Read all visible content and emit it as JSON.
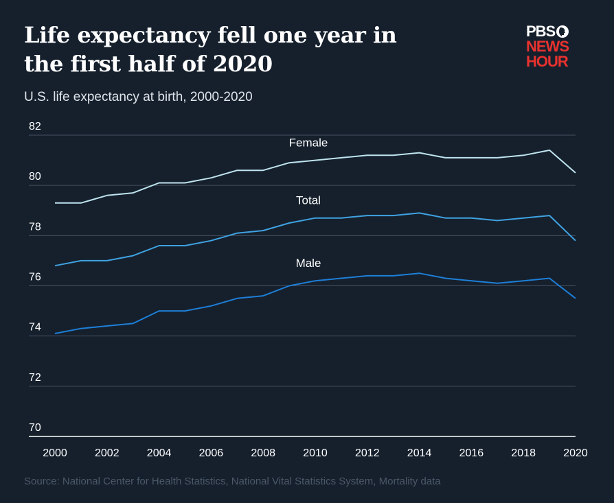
{
  "header": {
    "title": "Life expectancy fell one year in\nthe first half of 2020",
    "subtitle": "U.S. life expectancy at birth, 2000-2020"
  },
  "logo": {
    "line1": "PBS",
    "line2": "NEWS",
    "line3": "HOUR",
    "icon": "pbs-head-icon",
    "colors": {
      "pbs": "#ffffff",
      "news_hour": "#e8322f"
    }
  },
  "footer": {
    "source": "Source: National Center for Health Statistics, National Vital Statistics System, Mortality data"
  },
  "colors": {
    "background": "#16202d",
    "gridline": "#46505e",
    "female": "#bfe4ef",
    "total": "#3fa3e2",
    "male": "#1d7fd8"
  },
  "chart_data": {
    "type": "line",
    "title": "Life expectancy fell one year in the first half of 2020",
    "subtitle": "U.S. life expectancy at birth, 2000-2020",
    "x": [
      2000,
      2001,
      2002,
      2003,
      2004,
      2005,
      2006,
      2007,
      2008,
      2009,
      2010,
      2011,
      2012,
      2013,
      2014,
      2015,
      2016,
      2017,
      2018,
      2019,
      2020
    ],
    "x_ticks": [
      "2000",
      "2002",
      "2004",
      "2006",
      "2008",
      "2010",
      "2012",
      "2014",
      "2016",
      "2018",
      "2020"
    ],
    "y_ticks": [
      "70",
      "72",
      "74",
      "76",
      "78",
      "80",
      "82"
    ],
    "xlim": [
      2000,
      2020
    ],
    "ylim": [
      70,
      82
    ],
    "grid": true,
    "series": [
      {
        "name": "Female",
        "color": "#bfe4ef",
        "values": [
          79.3,
          79.3,
          79.6,
          79.7,
          80.1,
          80.1,
          80.3,
          80.6,
          80.6,
          80.9,
          81.0,
          81.1,
          81.2,
          81.2,
          81.3,
          81.1,
          81.1,
          81.1,
          81.2,
          81.4,
          80.5
        ]
      },
      {
        "name": "Total",
        "color": "#3fa3e2",
        "values": [
          76.8,
          77.0,
          77.0,
          77.2,
          77.6,
          77.6,
          77.8,
          78.1,
          78.2,
          78.5,
          78.7,
          78.7,
          78.8,
          78.8,
          78.9,
          78.7,
          78.7,
          78.6,
          78.7,
          78.8,
          77.8
        ]
      },
      {
        "name": "Male",
        "color": "#1d7fd8",
        "values": [
          74.1,
          74.3,
          74.4,
          74.5,
          75.0,
          75.0,
          75.2,
          75.5,
          75.6,
          76.0,
          76.2,
          76.3,
          76.4,
          76.4,
          76.5,
          76.3,
          76.2,
          76.1,
          76.2,
          76.3,
          75.5
        ]
      }
    ]
  }
}
